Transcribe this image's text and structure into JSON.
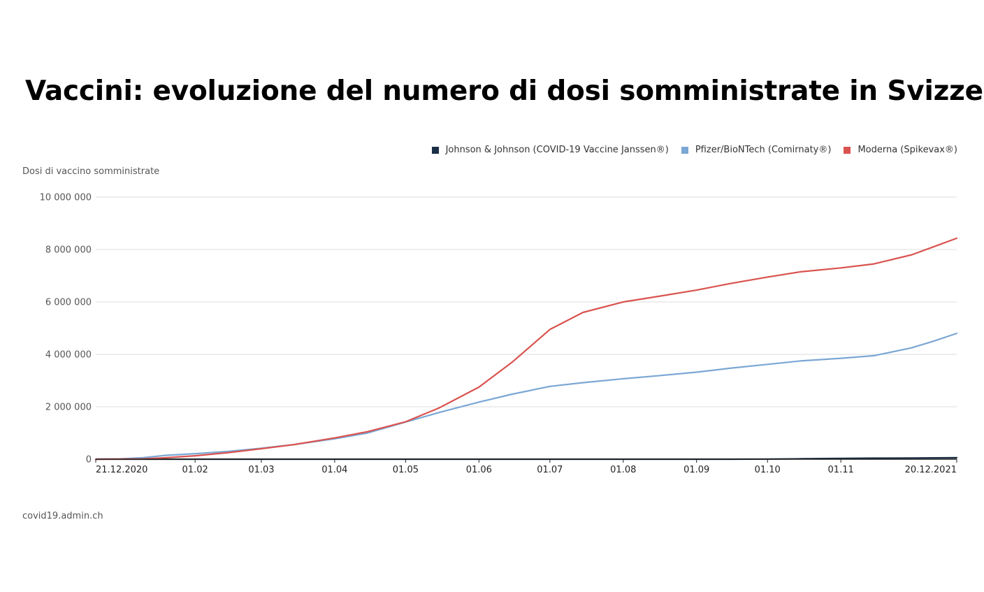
{
  "title": "Vaccini: evoluzione del numero di dosi somministrate in Svizzera",
  "source": "covid19.admin.ch",
  "chart_data": {
    "type": "line",
    "title": "Vaccini: evoluzione del numero di dosi somministrate in Svizzera",
    "ylabel": "Dosi di vaccino somministrate",
    "xlabel": "",
    "ylim": [
      0,
      10000000
    ],
    "xlim": [
      "2020-12-21",
      "2021-12-20"
    ],
    "y_ticks": [
      {
        "value": 0,
        "label": "0"
      },
      {
        "value": 2000000,
        "label": "2 000 000"
      },
      {
        "value": 4000000,
        "label": "4 000 000"
      },
      {
        "value": 6000000,
        "label": "6 000 000"
      },
      {
        "value": 8000000,
        "label": "8 000 000"
      },
      {
        "value": 10000000,
        "label": "10 000 000"
      }
    ],
    "x_ticks": [
      {
        "date": "2020-12-21",
        "label": "21.12.2020"
      },
      {
        "date": "2021-02-01",
        "label": "01.02"
      },
      {
        "date": "2021-03-01",
        "label": "01.03"
      },
      {
        "date": "2021-04-01",
        "label": "01.04"
      },
      {
        "date": "2021-05-01",
        "label": "01.05"
      },
      {
        "date": "2021-06-01",
        "label": "01.06"
      },
      {
        "date": "2021-07-01",
        "label": "01.07"
      },
      {
        "date": "2021-08-01",
        "label": "01.08"
      },
      {
        "date": "2021-09-01",
        "label": "01.09"
      },
      {
        "date": "2021-10-01",
        "label": "01.10"
      },
      {
        "date": "2021-11-01",
        "label": "01.11"
      },
      {
        "date": "2021-12-20",
        "label": "20.12.2021"
      }
    ],
    "grid": true,
    "legend_position": "top-right",
    "series": [
      {
        "name": "Johnson & Johnson (COVID-19 Vaccine Janssen®)",
        "color": "#1a2e45",
        "points": [
          [
            "2020-12-21",
            0
          ],
          [
            "2021-07-01",
            0
          ],
          [
            "2021-09-15",
            0
          ],
          [
            "2021-10-01",
            5000
          ],
          [
            "2021-10-15",
            15000
          ],
          [
            "2021-11-01",
            30000
          ],
          [
            "2021-11-15",
            40000
          ],
          [
            "2021-12-01",
            45000
          ],
          [
            "2021-12-20",
            55000
          ]
        ]
      },
      {
        "name": "Pfizer/BioNTech (Comirnaty®)",
        "color": "#7ba7d4",
        "points": [
          [
            "2020-12-21",
            0
          ],
          [
            "2020-12-31",
            10000
          ],
          [
            "2021-01-10",
            60000
          ],
          [
            "2021-01-20",
            150000
          ],
          [
            "2021-02-01",
            210000
          ],
          [
            "2021-02-15",
            300000
          ],
          [
            "2021-03-01",
            420000
          ],
          [
            "2021-03-15",
            560000
          ],
          [
            "2021-04-01",
            780000
          ],
          [
            "2021-04-15",
            1000000
          ],
          [
            "2021-05-01",
            1420000
          ],
          [
            "2021-05-15",
            1780000
          ],
          [
            "2021-06-01",
            2180000
          ],
          [
            "2021-06-15",
            2480000
          ],
          [
            "2021-07-01",
            2780000
          ],
          [
            "2021-07-15",
            2920000
          ],
          [
            "2021-08-01",
            3070000
          ],
          [
            "2021-08-15",
            3180000
          ],
          [
            "2021-09-01",
            3320000
          ],
          [
            "2021-09-15",
            3470000
          ],
          [
            "2021-10-01",
            3620000
          ],
          [
            "2021-10-15",
            3750000
          ],
          [
            "2021-11-01",
            3850000
          ],
          [
            "2021-11-15",
            3950000
          ],
          [
            "2021-12-01",
            4250000
          ],
          [
            "2021-12-10",
            4500000
          ],
          [
            "2021-12-20",
            4800000
          ]
        ]
      },
      {
        "name": "Moderna (Spikevax®)",
        "color": "#d9534f",
        "points": [
          [
            "2020-12-21",
            0
          ],
          [
            "2021-01-10",
            10000
          ],
          [
            "2021-01-20",
            60000
          ],
          [
            "2021-02-01",
            130000
          ],
          [
            "2021-02-15",
            250000
          ],
          [
            "2021-03-01",
            400000
          ],
          [
            "2021-03-15",
            560000
          ],
          [
            "2021-04-01",
            810000
          ],
          [
            "2021-04-15",
            1050000
          ],
          [
            "2021-05-01",
            1430000
          ],
          [
            "2021-05-15",
            1950000
          ],
          [
            "2021-06-01",
            2750000
          ],
          [
            "2021-06-15",
            3700000
          ],
          [
            "2021-07-01",
            4950000
          ],
          [
            "2021-07-15",
            5600000
          ],
          [
            "2021-08-01",
            6000000
          ],
          [
            "2021-08-15",
            6200000
          ],
          [
            "2021-09-01",
            6450000
          ],
          [
            "2021-09-15",
            6700000
          ],
          [
            "2021-10-01",
            6950000
          ],
          [
            "2021-10-15",
            7150000
          ],
          [
            "2021-11-01",
            7300000
          ],
          [
            "2021-11-15",
            7450000
          ],
          [
            "2021-12-01",
            7800000
          ],
          [
            "2021-12-10",
            8100000
          ],
          [
            "2021-12-20",
            8430000
          ]
        ]
      }
    ]
  }
}
